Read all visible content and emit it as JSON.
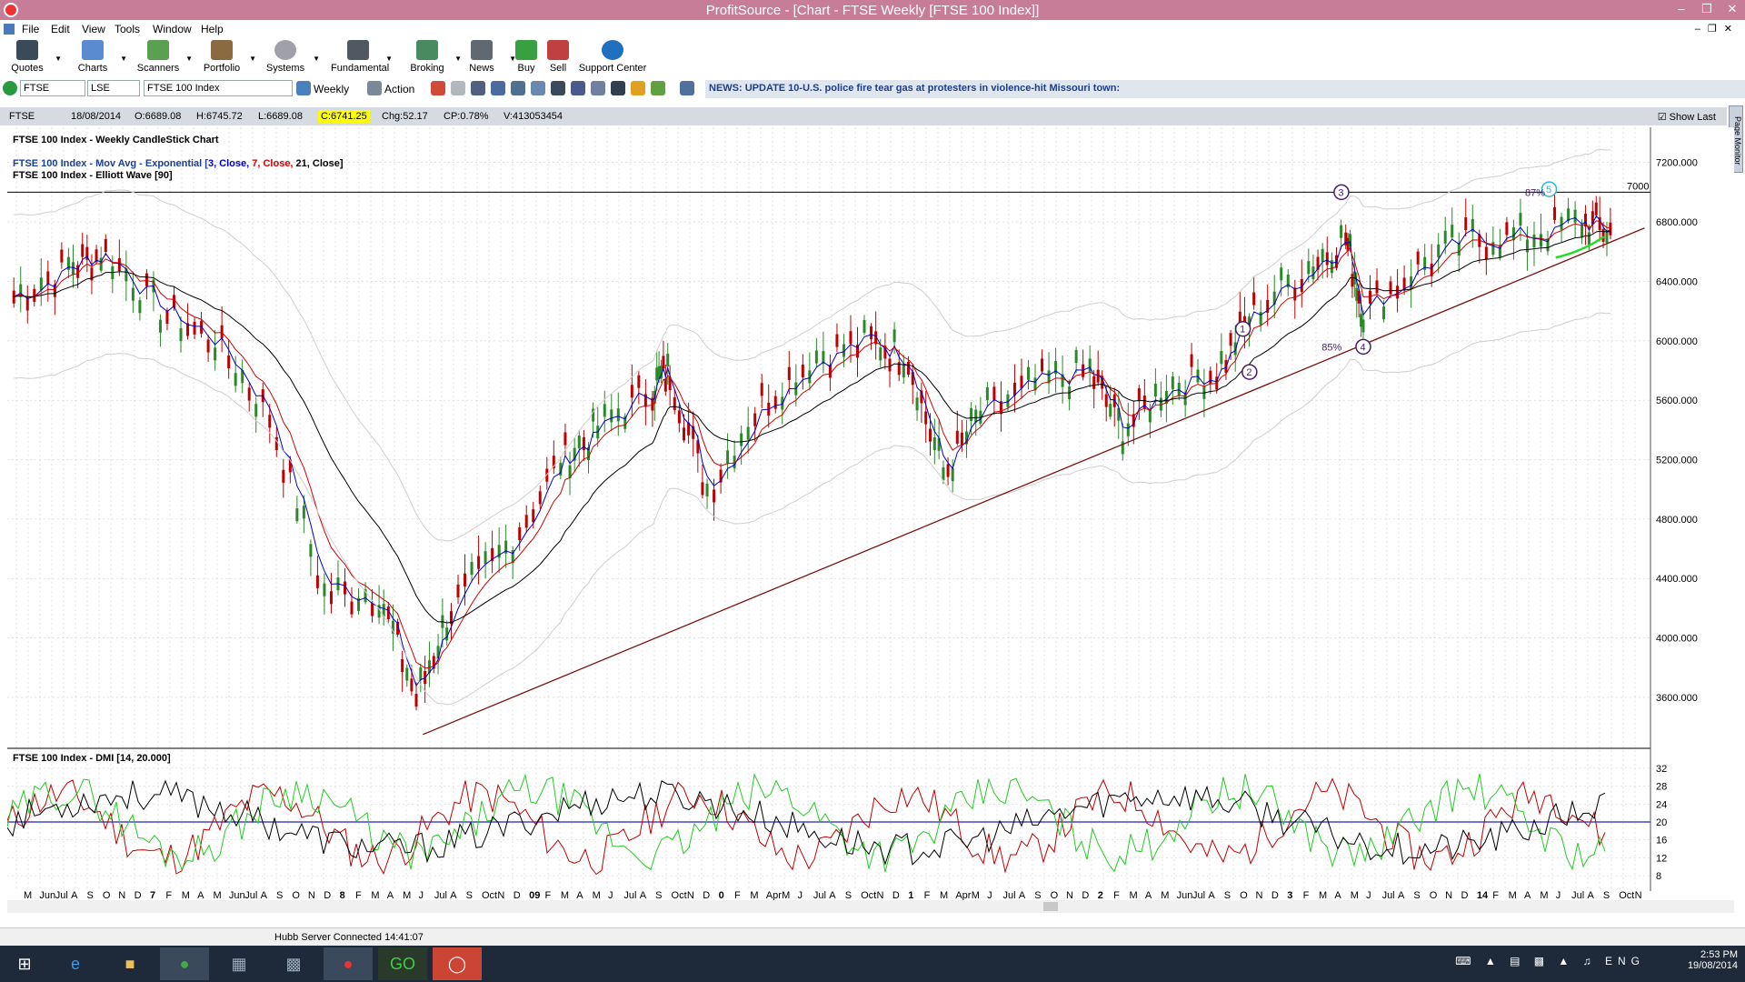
{
  "window": {
    "title": "ProfitSource - [Chart - FTSE Weekly [FTSE 100 Index]]"
  },
  "menu": [
    "File",
    "Edit",
    "View",
    "Tools",
    "Window",
    "Help"
  ],
  "toolbar": [
    {
      "label": "Quotes",
      "icon": "quotes-icon"
    },
    {
      "label": "Charts",
      "icon": "charts-icon"
    },
    {
      "label": "Scanners",
      "icon": "scanners-icon"
    },
    {
      "label": "Portfolio",
      "icon": "portfolio-icon"
    },
    {
      "label": "Systems",
      "icon": "systems-icon"
    },
    {
      "label": "Fundamental",
      "icon": "fundamental-icon"
    },
    {
      "label": "Broking",
      "icon": "broking-icon"
    },
    {
      "label": "News",
      "icon": "news-icon"
    },
    {
      "label": "Buy",
      "icon": "buy-icon"
    },
    {
      "label": "Sell",
      "icon": "sell-icon"
    },
    {
      "label": "Support Center",
      "icon": "help-icon"
    }
  ],
  "symbol_bar": {
    "symbol": "FTSE",
    "exchange": "LSE",
    "name": "FTSE 100 Index",
    "period": "Weekly",
    "action": "Action",
    "news": "NEWS: UPDATE 10-U.S. police fire tear gas at protesters in violence-hit Missouri town:"
  },
  "info": {
    "symbol": "FTSE",
    "date": "18/08/2014",
    "open": "O:6689.08",
    "high": "H:6745.72",
    "low": "L:6689.08",
    "close": "C:6741.25",
    "change": "Chg:52.17",
    "cp": "CP:0.78%",
    "volume": "V:413053454",
    "show_last": "Show Last"
  },
  "chart_data": [
    {
      "type": "line",
      "title": "FTSE 100 Index - Weekly CandleStick Chart",
      "legend": [
        "FTSE 100 Index - Mov Avg - Exponential [",
        "3, Close, ",
        "7, Close, ",
        "21, Close]",
        "FTSE 100 Index - Elliott Wave [90]"
      ],
      "yticks": [
        "7200.000",
        "6800.000",
        "6400.000",
        "6000.000",
        "5600.000",
        "5200.000",
        "4800.000",
        "4400.000",
        "4000.000",
        "3600.000"
      ],
      "ylim": [
        3300,
        7400
      ],
      "reference_line": {
        "value": 7000,
        "label": "7000"
      },
      "x": [
        2007.33,
        2007.58,
        2007.75,
        2008.0,
        2008.25,
        2008.5,
        2008.75,
        2009.0,
        2009.17,
        2009.33,
        2009.58,
        2009.83,
        2010.0,
        2010.25,
        2010.33,
        2010.5,
        2010.75,
        2011.0,
        2011.25,
        2011.42,
        2011.58,
        2011.75,
        2012.0,
        2012.25,
        2012.4,
        2012.6,
        2012.83,
        2013.0,
        2013.25,
        2013.42,
        2013.5,
        2013.75,
        2014.0,
        2014.25,
        2014.5,
        2014.63
      ],
      "y": [
        6300,
        6500,
        6600,
        6200,
        6000,
        5500,
        4300,
        4300,
        3600,
        4200,
        4600,
        5200,
        5400,
        5700,
        5800,
        5000,
        5600,
        5900,
        6000,
        5900,
        5100,
        5500,
        5700,
        5800,
        5400,
        5700,
        5800,
        6200,
        6500,
        6700,
        6200,
        6500,
        6700,
        6700,
        6800,
        6741
      ],
      "elliott_labels": [
        "1",
        "2",
        "3",
        "4",
        "5"
      ],
      "annotations": [
        "87%",
        "85%"
      ],
      "trendline": {
        "from": [
          2009.2,
          3350
        ],
        "to": [
          2014.62,
          6600
        ]
      }
    },
    {
      "type": "line",
      "title": "FTSE 100 Index - DMI [14, 20.000]",
      "yticks": [
        "32",
        "28",
        "24",
        "20",
        "16",
        "12",
        "8"
      ],
      "ylim": [
        5,
        35
      ],
      "reference_line": {
        "value": 20
      }
    }
  ],
  "xaxis_labels": [
    "M",
    "Jun",
    "Jul",
    "A",
    "S",
    "O",
    "N",
    "D",
    "7",
    "F",
    "M",
    "A",
    "M",
    "Jun",
    "Jul",
    "A",
    "S",
    "O",
    "N",
    "D",
    "8",
    "F",
    "M",
    "A",
    "M",
    "J",
    "Jul",
    "A",
    "S",
    "Oct",
    "N",
    "D",
    "09",
    "F",
    "M",
    "A",
    "M",
    "J",
    "Jul",
    "A",
    "S",
    "Oct",
    "N",
    "D",
    "0",
    "F",
    "M",
    "Apr",
    "M",
    "J",
    "Jul",
    "A",
    "S",
    "Oct",
    "N",
    "D",
    "1",
    "F",
    "M",
    "Apr",
    "M",
    "J",
    "Jul",
    "A",
    "S",
    "O",
    "N",
    "D",
    "2",
    "F",
    "M",
    "A",
    "M",
    "Jun",
    "Jul",
    "A",
    "S",
    "O",
    "N",
    "D",
    "3",
    "F",
    "M",
    "A",
    "M",
    "J",
    "Jul",
    "A",
    "S",
    "O",
    "N",
    "D",
    "14",
    "F",
    "M",
    "A",
    "M",
    "J",
    "Jul",
    "A",
    "S",
    "Oct",
    "N"
  ],
  "status": {
    "text": "Hubb Server Connected 14:41:07"
  },
  "tray": {
    "lang": "ENG",
    "time": "2:53 PM",
    "date": "19/08/2014"
  },
  "colors": {
    "titlebar": "#c77d98",
    "ma3": "#0000c0",
    "ma7": "#d00000",
    "ma21": "#000000",
    "news": "#1b3f8f"
  }
}
